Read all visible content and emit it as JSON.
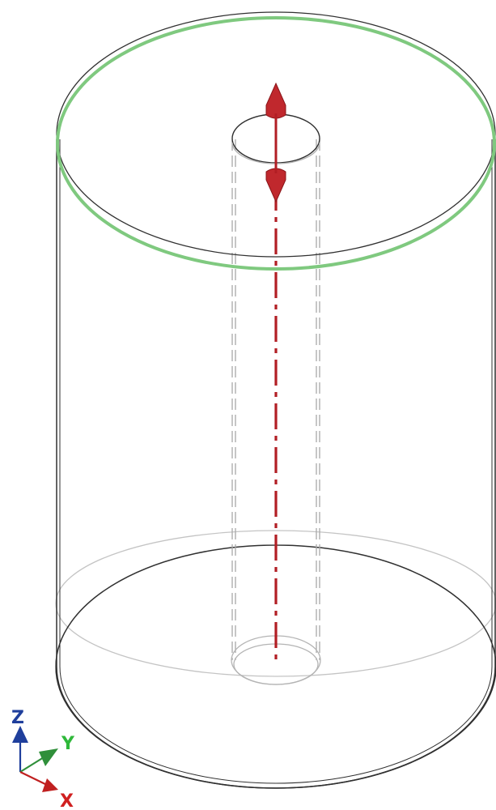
{
  "viewport": {
    "background": "#ffffff",
    "model": "cylinder-with-through-hole",
    "selected_edge": "top-outer-circle",
    "axis": "hole-centerline"
  },
  "colors": {
    "edge": "#303030",
    "hidden_edge": "#a8a8a8",
    "faint_edge": "#c4c4c4",
    "selection": "#7fc97f",
    "axis": "#b21e24",
    "triad_z": "#1f3f9c",
    "triad_y": "#2f8f3a",
    "triad_x": "#c02020"
  },
  "triad": {
    "z_label": "Z",
    "y_label": "Y",
    "x_label": "X"
  }
}
